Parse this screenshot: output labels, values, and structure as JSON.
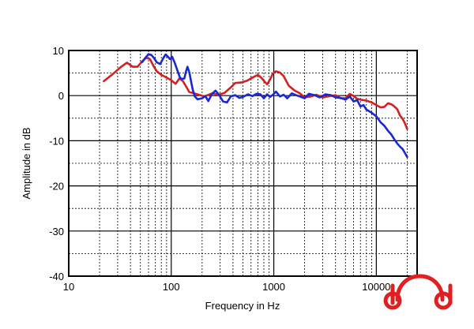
{
  "chart_data": {
    "type": "line",
    "xlabel": "Frequency in Hz",
    "ylabel": "Amplitude in dB",
    "x_scale": "log",
    "xlim": [
      10,
      25000
    ],
    "ylim": [
      -40,
      10
    ],
    "x_ticks": [
      10,
      100,
      1000,
      10000
    ],
    "x_tick_labels": [
      "10",
      "100",
      "1000",
      "10000"
    ],
    "y_ticks": [
      10,
      0,
      -10,
      -20,
      -30,
      -40
    ],
    "y_tick_labels": [
      "10",
      "0",
      "-10",
      "-20",
      "-30",
      "-40"
    ],
    "grid": true,
    "series": [
      {
        "color": "#d42020",
        "points": [
          [
            22,
            3.2
          ],
          [
            27,
            4.8
          ],
          [
            32,
            6.3
          ],
          [
            37,
            7.3
          ],
          [
            42,
            6.4
          ],
          [
            47,
            6.4
          ],
          [
            52,
            7.6
          ],
          [
            57,
            8.4
          ],
          [
            62,
            8.1
          ],
          [
            67,
            6.6
          ],
          [
            72,
            5.4
          ],
          [
            80,
            4.6
          ],
          [
            90,
            4.0
          ],
          [
            100,
            3.4
          ],
          [
            110,
            2.6
          ],
          [
            120,
            3.8
          ],
          [
            130,
            3.2
          ],
          [
            150,
            0.8
          ],
          [
            180,
            0.3
          ],
          [
            210,
            -0.2
          ],
          [
            250,
            0.5
          ],
          [
            290,
            0.2
          ],
          [
            330,
            0.6
          ],
          [
            380,
            1.8
          ],
          [
            420,
            2.8
          ],
          [
            480,
            2.9
          ],
          [
            550,
            3.3
          ],
          [
            620,
            4.0
          ],
          [
            700,
            4.6
          ],
          [
            760,
            3.9
          ],
          [
            820,
            3.0
          ],
          [
            860,
            2.5
          ],
          [
            920,
            3.6
          ],
          [
            980,
            4.9
          ],
          [
            1050,
            5.4
          ],
          [
            1150,
            5.1
          ],
          [
            1250,
            4.3
          ],
          [
            1400,
            2.2
          ],
          [
            1600,
            1.1
          ],
          [
            1800,
            0.5
          ],
          [
            2000,
            -0.4
          ],
          [
            2300,
            -0.2
          ],
          [
            2600,
            0.2
          ],
          [
            3000,
            -0.4
          ],
          [
            3500,
            -0.1
          ],
          [
            4000,
            0.1
          ],
          [
            4500,
            -0.6
          ],
          [
            5000,
            -0.6
          ],
          [
            5500,
            0.4
          ],
          [
            6000,
            -0.1
          ],
          [
            6500,
            -0.7
          ],
          [
            7000,
            -0.9
          ],
          [
            8000,
            -1.1
          ],
          [
            9000,
            -1.5
          ],
          [
            10000,
            -2.1
          ],
          [
            11000,
            -2.6
          ],
          [
            12000,
            -2.5
          ],
          [
            13000,
            -1.7
          ],
          [
            14000,
            -1.9
          ],
          [
            15000,
            -2.4
          ],
          [
            16000,
            -3.0
          ],
          [
            17000,
            -4.4
          ],
          [
            18000,
            -5.1
          ],
          [
            19000,
            -6.1
          ],
          [
            20000,
            -7.4
          ]
        ]
      },
      {
        "color": "#1a28d0",
        "points": [
          [
            52,
            7.4
          ],
          [
            56,
            8.4
          ],
          [
            60,
            9.2
          ],
          [
            64,
            9.0
          ],
          [
            68,
            8.3
          ],
          [
            72,
            7.4
          ],
          [
            78,
            7.0
          ],
          [
            84,
            8.4
          ],
          [
            88,
            9.1
          ],
          [
            92,
            8.7
          ],
          [
            97,
            8.1
          ],
          [
            102,
            8.6
          ],
          [
            108,
            7.3
          ],
          [
            115,
            5.5
          ],
          [
            122,
            3.9
          ],
          [
            128,
            3.7
          ],
          [
            134,
            3.8
          ],
          [
            140,
            5.5
          ],
          [
            144,
            6.4
          ],
          [
            150,
            5.2
          ],
          [
            156,
            3.2
          ],
          [
            162,
            1.3
          ],
          [
            170,
            -0.2
          ],
          [
            180,
            -0.8
          ],
          [
            200,
            -0.6
          ],
          [
            215,
            -0.1
          ],
          [
            230,
            -1.2
          ],
          [
            250,
            0.4
          ],
          [
            270,
            1.1
          ],
          [
            290,
            0.3
          ],
          [
            320,
            -1.3
          ],
          [
            350,
            -1.5
          ],
          [
            380,
            -0.2
          ],
          [
            420,
            0.1
          ],
          [
            460,
            -0.5
          ],
          [
            500,
            -0.3
          ],
          [
            560,
            0.3
          ],
          [
            620,
            -0.1
          ],
          [
            680,
            0.4
          ],
          [
            740,
            0.3
          ],
          [
            800,
            -0.6
          ],
          [
            860,
            0.3
          ],
          [
            920,
            -0.3
          ],
          [
            980,
            0.2
          ],
          [
            1050,
            0.9
          ],
          [
            1150,
            -0.2
          ],
          [
            1250,
            0.2
          ],
          [
            1350,
            -0.6
          ],
          [
            1500,
            0.5
          ],
          [
            1650,
            0.1
          ],
          [
            1800,
            -0.2
          ],
          [
            2000,
            -0.6
          ],
          [
            2200,
            0.4
          ],
          [
            2500,
            0.1
          ],
          [
            2800,
            -0.4
          ],
          [
            3200,
            0.3
          ],
          [
            3600,
            0.1
          ],
          [
            4000,
            -0.4
          ],
          [
            4500,
            -0.5
          ],
          [
            5000,
            -0.9
          ],
          [
            5500,
            -0.2
          ],
          [
            6000,
            -1.3
          ],
          [
            6500,
            -1.0
          ],
          [
            7000,
            -2.4
          ],
          [
            7500,
            -2.1
          ],
          [
            8000,
            -3.1
          ],
          [
            9000,
            -3.8
          ],
          [
            10000,
            -4.6
          ],
          [
            11000,
            -5.9
          ],
          [
            12000,
            -6.7
          ],
          [
            13000,
            -7.8
          ],
          [
            14000,
            -8.6
          ],
          [
            15000,
            -9.7
          ],
          [
            16000,
            -10.6
          ],
          [
            17000,
            -11.3
          ],
          [
            18000,
            -11.8
          ],
          [
            19000,
            -12.7
          ],
          [
            20000,
            -13.6
          ]
        ]
      }
    ]
  },
  "logo": {
    "name": "headphone-logo-icon",
    "color": "#e02020"
  }
}
